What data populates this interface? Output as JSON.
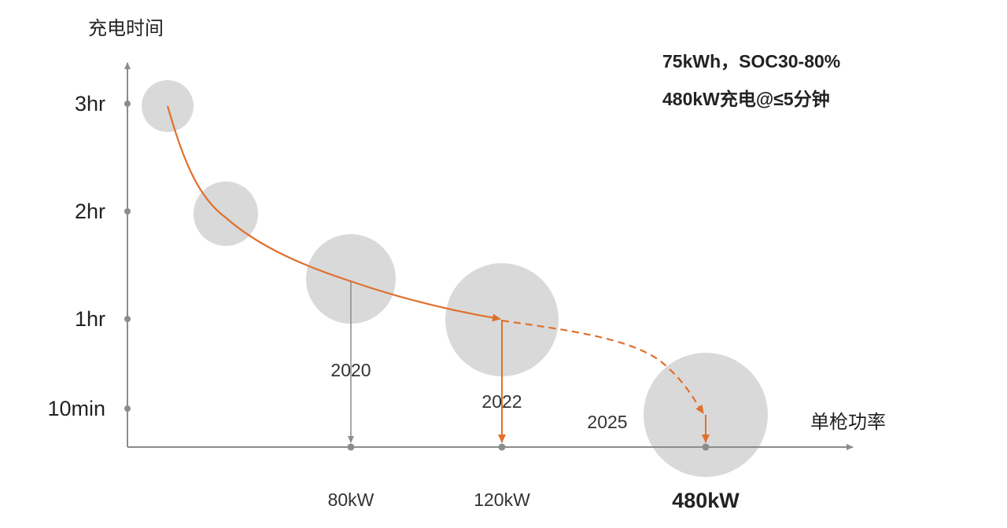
{
  "colors": {
    "axis": "#8c8c8c",
    "bubble": "#d9d9da",
    "curve": "#e0702b",
    "text": "#222222",
    "label": "#333333"
  },
  "chart_data": {
    "type": "scatter",
    "title": "",
    "ylabel": "充电时间",
    "xlabel": "单枪功率",
    "y_ticks": [
      "3hr",
      "2hr",
      "1hr",
      "10min"
    ],
    "annotations": [
      "75kWh，SOC30-80%",
      "480kW充电@≤5分钟"
    ],
    "x_ticks": [
      {
        "label": "80kW",
        "bold": false
      },
      {
        "label": "120kW",
        "bold": false
      },
      {
        "label": "480kW",
        "bold": true
      }
    ],
    "points": [
      {
        "name": "",
        "x_tick": null,
        "y_hours": 3.0
      },
      {
        "name": "",
        "x_tick": null,
        "y_hours": 2.0
      },
      {
        "name": "2020",
        "x_tick": "80kW",
        "y_hours": 1.35
      },
      {
        "name": "2022",
        "x_tick": "120kW",
        "y_hours": 1.0
      },
      {
        "name": "2025",
        "x_tick": "480kW",
        "y_hours": 0.08
      }
    ],
    "trend": {
      "solid": "first four points",
      "dashed": "2022 to 2025"
    },
    "grid": false,
    "legend": "none"
  }
}
